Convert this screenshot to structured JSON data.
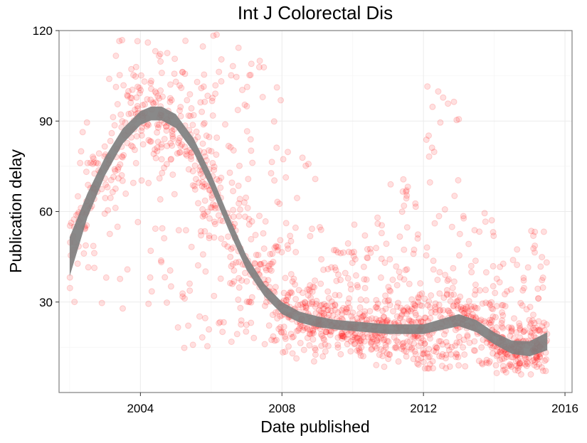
{
  "chart_data": {
    "type": "scatter",
    "title": "Int J Colorectal Dis",
    "xlabel": "Date published",
    "ylabel": "Publication delay",
    "xlim": [
      2001.7,
      2016.2
    ],
    "ylim": [
      0,
      120
    ],
    "x_ticks": [
      2004,
      2008,
      2012,
      2016
    ],
    "x_tick_labels": [
      "2004",
      "2008",
      "2012",
      "2016"
    ],
    "y_ticks": [
      30,
      60,
      90,
      120
    ],
    "y_tick_labels": [
      "30",
      "60",
      "90",
      "120"
    ],
    "grid": true,
    "legend": "none",
    "colors": {
      "points": "#ff0000",
      "smooth_band": "#7f7f7f",
      "panel_border": "#7f7f7f",
      "grid_major": "#ebebeb",
      "grid_minor": "#f5f5f5"
    },
    "point_opacity": 0.12,
    "smooth": {
      "x": [
        2002.0,
        2002.5,
        2003.0,
        2003.5,
        2004.0,
        2004.3,
        2004.6,
        2005.0,
        2005.5,
        2006.0,
        2006.5,
        2007.0,
        2007.5,
        2008.0,
        2008.5,
        2009.0,
        2009.5,
        2010.0,
        2010.5,
        2011.0,
        2011.5,
        2012.0,
        2012.5,
        2013.0,
        2013.5,
        2014.0,
        2014.5,
        2015.0,
        2015.5
      ],
      "y": [
        45,
        62,
        75,
        85,
        91,
        92.5,
        92.5,
        90,
        82,
        70,
        56,
        43,
        34,
        28,
        25,
        23.5,
        22.5,
        22,
        21.5,
        21,
        21,
        21,
        22.5,
        24,
        22,
        18,
        15,
        14.5,
        17
      ],
      "ci_halfwidth": [
        6.5,
        4,
        3,
        2.5,
        2.3,
        2.3,
        2.3,
        2.3,
        2.3,
        2.3,
        2.3,
        2.3,
        2,
        2,
        1.8,
        1.8,
        1.6,
        1.6,
        1.6,
        1.6,
        1.6,
        1.6,
        1.8,
        2,
        2,
        2,
        2.2,
        2.5,
        3
      ]
    },
    "scatter_density": [
      {
        "x_range": [
          2002.0,
          2003.0
        ],
        "y_range": [
          28,
          95
        ],
        "n": 70
      },
      {
        "x_range": [
          2003.0,
          2004.0
        ],
        "y_range": [
          27,
          120
        ],
        "n": 90
      },
      {
        "x_range": [
          2004.0,
          2005.0
        ],
        "y_range": [
          28,
          120
        ],
        "n": 110
      },
      {
        "x_range": [
          2005.0,
          2006.0
        ],
        "y_range": [
          14,
          120
        ],
        "n": 120
      },
      {
        "x_range": [
          2006.0,
          2007.0
        ],
        "y_range": [
          14,
          120
        ],
        "n": 110
      },
      {
        "x_range": [
          2007.0,
          2008.0
        ],
        "y_range": [
          15,
          110
        ],
        "n": 110
      },
      {
        "x_range": [
          2008.0,
          2009.0
        ],
        "y_range": [
          10,
          80
        ],
        "n": 130
      },
      {
        "x_range": [
          2009.0,
          2010.0
        ],
        "y_range": [
          10,
          55
        ],
        "n": 140
      },
      {
        "x_range": [
          2010.0,
          2011.0
        ],
        "y_range": [
          8,
          58
        ],
        "n": 150
      },
      {
        "x_range": [
          2011.0,
          2012.0
        ],
        "y_range": [
          8,
          73
        ],
        "n": 150
      },
      {
        "x_range": [
          2012.0,
          2013.0
        ],
        "y_range": [
          8,
          103
        ],
        "n": 140
      },
      {
        "x_range": [
          2013.0,
          2014.0
        ],
        "y_range": [
          8,
          62
        ],
        "n": 120
      },
      {
        "x_range": [
          2014.0,
          2015.0
        ],
        "y_range": [
          6,
          48
        ],
        "n": 150
      },
      {
        "x_range": [
          2015.0,
          2015.5
        ],
        "y_range": [
          6,
          54
        ],
        "n": 90
      }
    ]
  }
}
